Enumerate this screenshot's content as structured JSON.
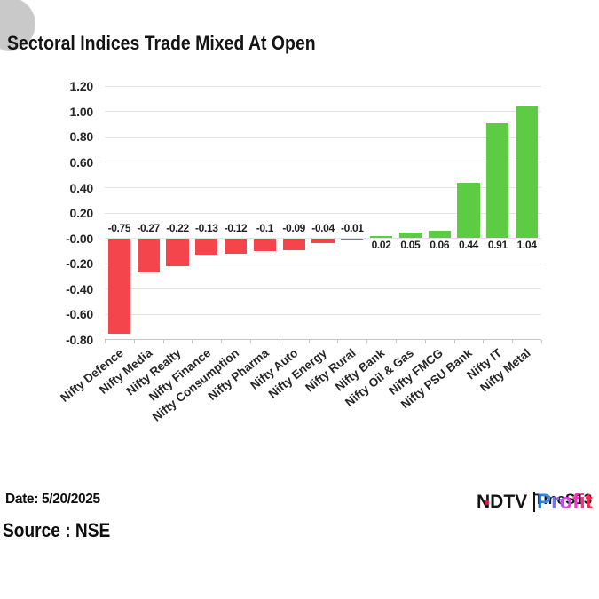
{
  "title": "Sectoral Indices Trade Mixed At Open",
  "footer": {
    "date_label": "Date: 5/20/2025",
    "source_label": "Source : NSE"
  },
  "logo": {
    "ndtv": "NDTV",
    "profit": "Profit",
    "artifact_text": "TmeS13"
  },
  "colors": {
    "negative_bar": "#f4454d",
    "positive_bar": "#5ecb45",
    "gridline": "#e3e3e3",
    "axis": "#c9c9c9",
    "title_text": "#141414",
    "label_text": "#262626",
    "background": "#ffffff",
    "ndtv_red_dot": "#e8192c"
  },
  "chart_data": {
    "type": "bar",
    "title": "Sectoral Indices Trade Mixed At Open",
    "categories": [
      "Nifty Defence",
      "Nifty Media",
      "Nifty Realty",
      "Nifty Finance",
      "Nifty Consumption",
      "Nifty Pharma",
      "Nifty Auto",
      "Nifty Energy",
      "Nifty Rural",
      "Nifty Bank",
      "Nifty Oil & Gas",
      "Nifty FMCG",
      "Nifty PSU Bank",
      "Nifty IT",
      "Nifty Metal"
    ],
    "values": [
      -0.75,
      -0.27,
      -0.22,
      -0.13,
      -0.12,
      -0.1,
      -0.09,
      -0.04,
      -0.01,
      0.02,
      0.05,
      0.06,
      0.44,
      0.91,
      1.04
    ],
    "value_labels": [
      "-0.75",
      "-0.27",
      "-0.22",
      "-0.13",
      "-0.12",
      "-0.1",
      "-0.09",
      "-0.04",
      "-0.01",
      "0.02",
      "0.05",
      "0.06",
      "0.44",
      "0.91",
      "1.04"
    ],
    "y_ticks": [
      {
        "value": 1.2,
        "label": "1.20"
      },
      {
        "value": 1.0,
        "label": "1.00"
      },
      {
        "value": 0.8,
        "label": "0.80"
      },
      {
        "value": 0.6,
        "label": "0.60"
      },
      {
        "value": 0.4,
        "label": "0.40"
      },
      {
        "value": 0.2,
        "label": "0.20"
      },
      {
        "value": 0.0,
        "label": "-0.00"
      },
      {
        "value": -0.2,
        "label": "-0.20"
      },
      {
        "value": -0.4,
        "label": "-0.40"
      },
      {
        "value": -0.6,
        "label": "-0.60"
      },
      {
        "value": -0.8,
        "label": "-0.80"
      }
    ],
    "ylim": [
      -0.8,
      1.2
    ],
    "xlabel": "",
    "ylabel": "",
    "grid": true,
    "legend": false
  }
}
